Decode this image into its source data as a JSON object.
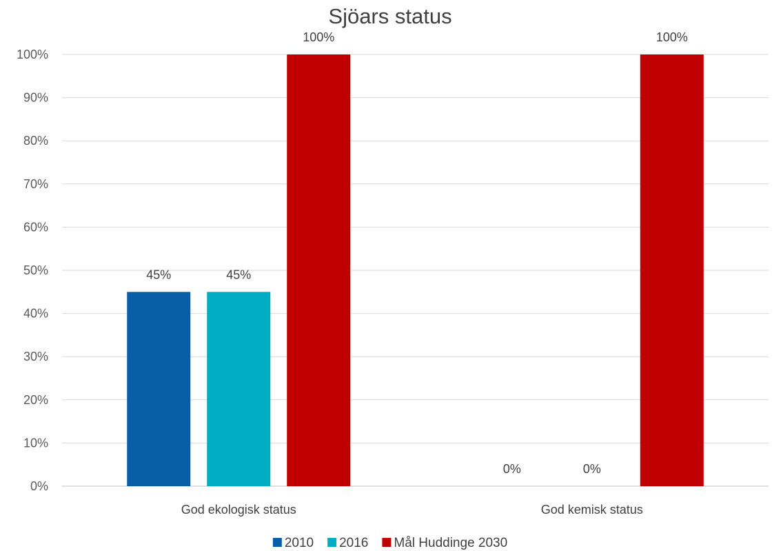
{
  "chart_data": {
    "type": "bar",
    "title": "Sjöars status",
    "xlabel": "",
    "ylabel": "",
    "categories": [
      "God ekologisk status",
      "God kemisk status"
    ],
    "series": [
      {
        "name": "2010",
        "values": [
          45,
          0
        ],
        "color": "#0a5ea8"
      },
      {
        "name": "2016",
        "values": [
          45,
          0
        ],
        "color": "#00acc1"
      },
      {
        "name": "Mål Huddinge 2030",
        "values": [
          100,
          100
        ],
        "color": "#c00000"
      }
    ],
    "ylim": [
      0,
      100
    ],
    "yticks": [
      0,
      10,
      20,
      30,
      40,
      50,
      60,
      70,
      80,
      90,
      100
    ],
    "ytick_labels": [
      "0%",
      "10%",
      "20%",
      "30%",
      "40%",
      "50%",
      "60%",
      "70%",
      "80%",
      "90%",
      "100%"
    ],
    "data_labels": [
      [
        "45%",
        "0%"
      ],
      [
        "45%",
        "0%"
      ],
      [
        "100%",
        "100%"
      ]
    ],
    "grid": true,
    "legend_position": "bottom"
  }
}
